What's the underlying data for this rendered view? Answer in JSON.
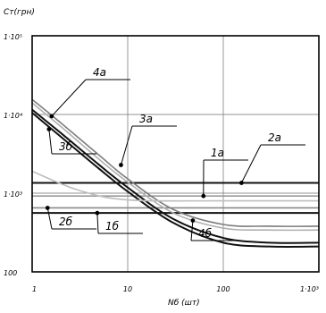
{
  "chart_data": {
    "type": "line",
    "ylabel": "Ст(грн)",
    "xlabel": "Nб (шт)",
    "x_scale": "log",
    "y_scale": "log",
    "xlim": [
      1,
      1000
    ],
    "ylim": [
      100,
      100000
    ],
    "grid": true,
    "x_ticks": [
      "1",
      "10",
      "100",
      "1·10³"
    ],
    "y_ticks": [
      "100",
      "1·10³",
      "1·10⁴",
      "1·10⁵"
    ],
    "series": [
      {
        "name": "1а",
        "x": [
          1,
          1000
        ],
        "y": [
          920,
          920
        ],
        "color": "#9a9a9a"
      },
      {
        "name": "1б",
        "x": [
          1,
          1000
        ],
        "y": [
          560,
          560
        ],
        "color": "#111111"
      },
      {
        "name": "2а",
        "x": [
          1,
          1000
        ],
        "y": [
          1350,
          1350
        ],
        "color": "#111111"
      },
      {
        "name": "2б",
        "x": [
          1,
          1000
        ],
        "y": [
          650,
          650
        ],
        "color": "#8a8a8a"
      },
      {
        "name": "3а",
        "x": [
          1,
          2,
          5,
          10,
          30,
          100,
          300,
          1000
        ],
        "y": [
          14000,
          7000,
          2700,
          1380,
          560,
          360,
          340,
          340
        ],
        "color": "#b0b0b0"
      },
      {
        "name": "3б",
        "x": [
          1,
          2,
          5,
          10,
          30,
          100,
          300,
          1000
        ],
        "y": [
          11500,
          5800,
          2300,
          1180,
          470,
          270,
          235,
          235
        ],
        "color": "#111111"
      },
      {
        "name": "4а",
        "x": [
          1,
          2,
          5,
          10,
          30,
          100,
          300,
          1000
        ],
        "y": [
          15500,
          7800,
          3050,
          1520,
          620,
          400,
          380,
          380
        ],
        "color": "#7d7d7d"
      },
      {
        "name": "4б",
        "x": [
          1,
          2,
          5,
          10,
          30,
          100,
          300,
          1000
        ],
        "y": [
          10500,
          5200,
          2050,
          1050,
          420,
          235,
          210,
          210
        ],
        "color": "#111111"
      },
      {
        "name": "",
        "x": [
          1,
          3,
          10,
          100,
          1000
        ],
        "y": [
          1900,
          1100,
          820,
          800,
          800
        ],
        "color": "#bdbdbd"
      }
    ],
    "annotations": [
      {
        "text": "4а",
        "x": 1.6,
        "y": 9500
      },
      {
        "text": "3а",
        "x": 8.5,
        "y": 2280
      },
      {
        "text": "3б",
        "x": 1.5,
        "y": 6500
      },
      {
        "text": "1а",
        "x": 62,
        "y": 920
      },
      {
        "text": "2а",
        "x": 155,
        "y": 1350
      },
      {
        "text": "2б",
        "x": 1.45,
        "y": 650
      },
      {
        "text": "1б",
        "x": 4.8,
        "y": 560
      },
      {
        "text": "4б",
        "x": 48,
        "y": 450
      }
    ]
  }
}
